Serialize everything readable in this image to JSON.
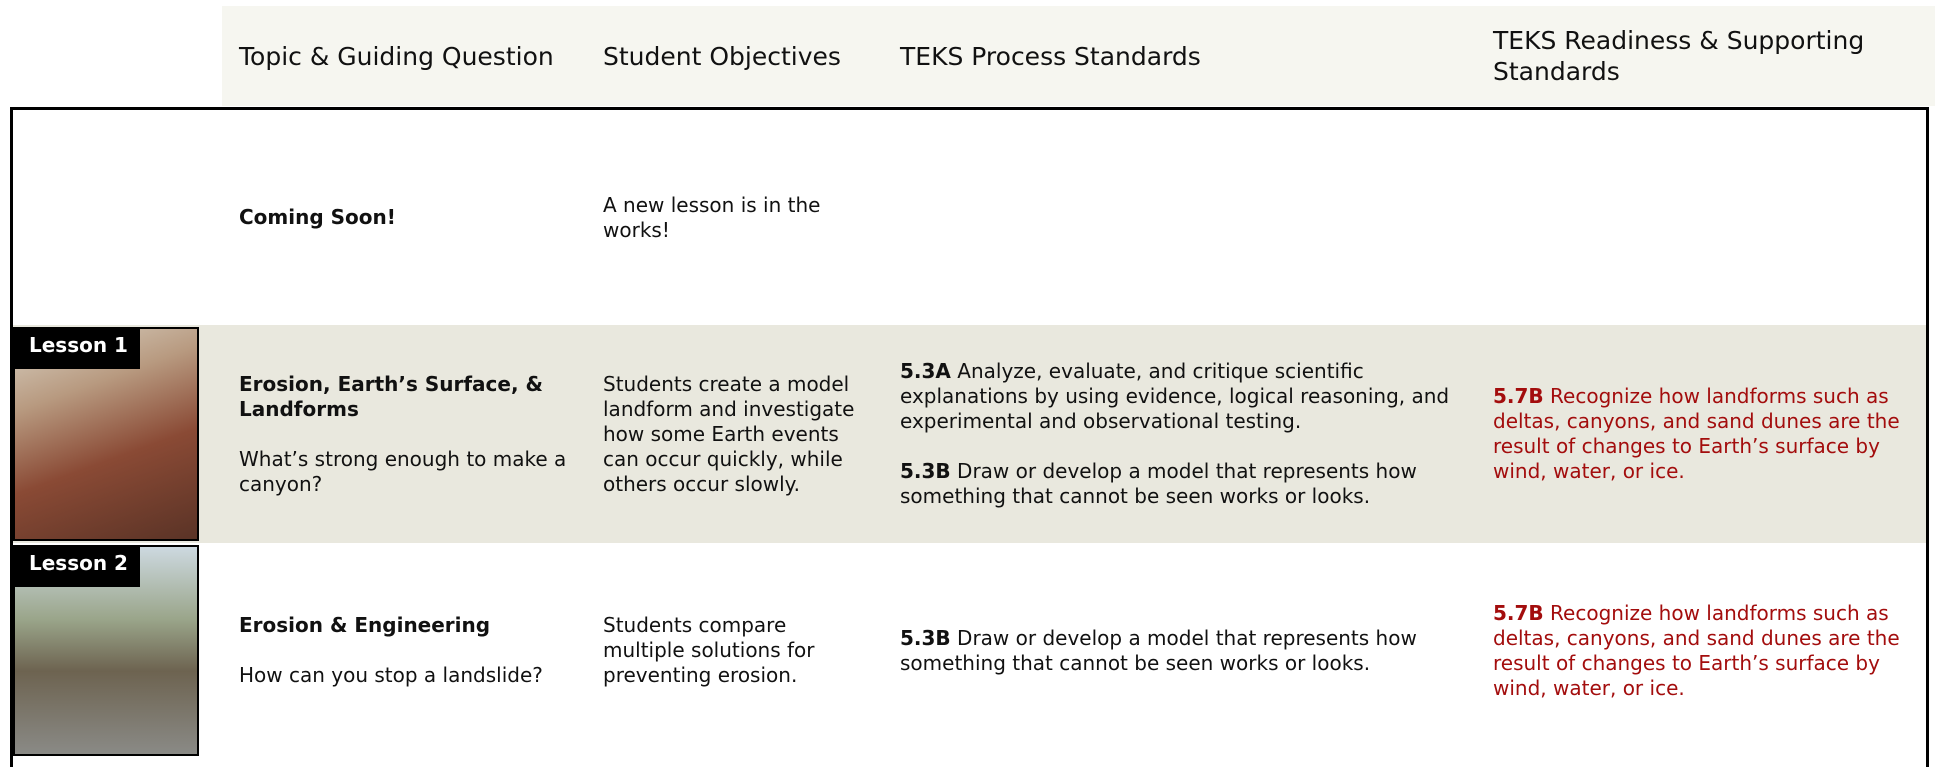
{
  "header": [
    "Topic & Guiding Question",
    "Student Objectives",
    "TEKS Process Standards",
    "TEKS Readiness & Supporting Standards"
  ],
  "rows": [
    {
      "topic": "Coming Soon!",
      "objectives": "A new lesson is in the works!"
    },
    {
      "lesson": "Lesson 1",
      "topic": "Erosion, Earth’s Surface, & Landforms",
      "question": "What’s strong enough to make a canyon?",
      "objectives": "Students create a model landform and investigate how some Earth events can occur quickly, while others occur slowly.",
      "process": [
        {
          "code": "5.3A",
          "text": "Analyze, evaluate, and critique scientific explanations by using evidence, logical reasoning, and experimental and observational testing."
        },
        {
          "code": "5.3B",
          "text": "Draw or develop a model that represents how something that cannot be seen works or looks."
        }
      ],
      "readiness": [
        {
          "code": "5.7B",
          "text": "Recognize how landforms such as deltas, canyons, and sand dunes are the result of changes to Earth’s surface by wind, water, or ice."
        }
      ]
    },
    {
      "lesson": "Lesson 2",
      "topic": "Erosion & Engineering",
      "question": "How can you stop a landslide?",
      "objectives": "Students compare multiple solutions for preventing erosion.",
      "process": [
        {
          "code": "5.3B",
          "text": "Draw or develop a model that represents how something that cannot be seen works or looks."
        }
      ],
      "readiness": [
        {
          "code": "5.7B",
          "text": "Recognize how landforms such as deltas, canyons, and sand dunes are the result of changes to Earth’s surface by wind, water, or ice."
        }
      ]
    }
  ]
}
